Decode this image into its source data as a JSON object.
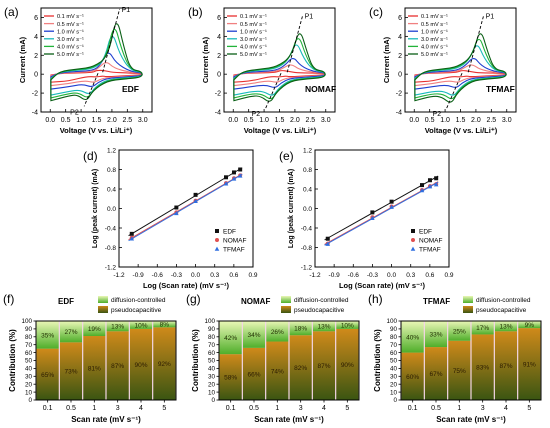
{
  "colors": {
    "scan_rates": [
      "#e7302f",
      "#f08080",
      "#1f3fd0",
      "#19b9bb",
      "#22b33a",
      "#0a5f16"
    ],
    "regression": {
      "EDF": "#111111",
      "NOMAF": "#e05050",
      "TFMAF": "#2f6fe0"
    },
    "bar_pseudo_top": "#cf8a1a",
    "bar_pseudo_bottom": "#3a5512",
    "bar_diff_top": "#eaf7b6",
    "bar_diff_bottom": "#4fae2a",
    "band": "#f4d6e6"
  },
  "chart_data": [
    {
      "panel": "(a)",
      "type": "line",
      "label": "EDF",
      "xlabel": "Voltage (V vs. Li/Li⁺)",
      "ylabel": "Current (mA)",
      "xlim": [
        -0.3,
        3.3
      ],
      "ylim": [
        -4,
        7
      ],
      "xticks": [
        "0.0",
        "0.5",
        "1.0",
        "1.5",
        "2.0",
        "2.5",
        "3.0"
      ],
      "yticks": [
        "-4",
        "-2",
        "0",
        "2",
        "4",
        "6"
      ],
      "legend": [
        "0.1 mV s⁻¹",
        "0.5 mV s⁻¹",
        "1.0 mV s⁻¹",
        "3.0 mV s⁻¹",
        "4.0 mV s⁻¹",
        "5.0 mV s⁻¹"
      ],
      "peak_labels": [
        "P1",
        "P2"
      ],
      "peak_anodic": {
        "v": [
          1.75,
          1.82,
          1.88,
          2.0,
          2.07,
          2.14
        ],
        "i": [
          0.4,
          1.4,
          2.6,
          4.7,
          5.6,
          6.3
        ]
      },
      "peak_cathodic": {
        "v": [
          1.5,
          1.42,
          1.36,
          1.27,
          1.22,
          1.18
        ],
        "i": [
          -0.3,
          -0.9,
          -1.4,
          -2.2,
          -2.6,
          -2.9
        ]
      },
      "trend_line": {
        "anodic": [
          [
            1.7,
            0.2
          ],
          [
            2.25,
            6.9
          ]
        ],
        "cathodic": [
          [
            1.55,
            0.1
          ],
          [
            1.1,
            -3.4
          ]
        ]
      }
    },
    {
      "panel": "(b)",
      "type": "line",
      "label": "NOMAF",
      "xlabel": "Voltage (V vs. Li/Li⁺)",
      "ylabel": "Current (mA)",
      "xlim": [
        -0.3,
        3.3
      ],
      "ylim": [
        -4,
        7
      ],
      "xticks": [
        "0.0",
        "0.5",
        "1.0",
        "1.5",
        "2.0",
        "2.5",
        "3.0"
      ],
      "yticks": [
        "-4",
        "-2",
        "0",
        "2",
        "4",
        "6"
      ],
      "legend": [
        "0.1 mV s⁻¹",
        "0.5 mV s⁻¹",
        "1.0 mV s⁻¹",
        "3.0 mV s⁻¹",
        "4.0 mV s⁻¹",
        "5.0 mV s⁻¹"
      ],
      "peak_labels": [
        "P1",
        "P2"
      ],
      "peak_anodic": {
        "v": [
          1.8,
          1.88,
          1.94,
          2.04,
          2.1,
          2.15
        ],
        "i": [
          0.3,
          1.1,
          1.9,
          3.6,
          4.4,
          5.0
        ]
      },
      "peak_cathodic": {
        "v": [
          1.5,
          1.42,
          1.36,
          1.28,
          1.24,
          1.2
        ],
        "i": [
          -0.3,
          -0.9,
          -1.5,
          -2.4,
          -2.8,
          -3.1
        ]
      },
      "trend_line": {
        "anodic": [
          [
            1.75,
            0.2
          ],
          [
            2.25,
            6.2
          ]
        ],
        "cathodic": [
          [
            1.55,
            0.1
          ],
          [
            1.05,
            -3.6
          ]
        ]
      }
    },
    {
      "panel": "(c)",
      "type": "line",
      "label": "TFMAF",
      "xlabel": "Voltage (V vs. Li/Li⁺)",
      "ylabel": "Current (mA)",
      "xlim": [
        -0.3,
        3.3
      ],
      "ylim": [
        -4,
        7
      ],
      "xticks": [
        "0.0",
        "0.5",
        "1.0",
        "1.5",
        "2.0",
        "2.5",
        "3.0"
      ],
      "yticks": [
        "-4",
        "-2",
        "0",
        "2",
        "4",
        "6"
      ],
      "legend": [
        "0.1 mV s⁻¹",
        "0.5 mV s⁻¹",
        "1.0 mV s⁻¹",
        "3.0 mV s⁻¹",
        "4.0 mV s⁻¹",
        "5.0 mV s⁻¹"
      ],
      "peak_labels": [
        "P1",
        "P2"
      ],
      "peak_anodic": {
        "v": [
          1.8,
          1.87,
          1.93,
          2.03,
          2.09,
          2.14
        ],
        "i": [
          0.3,
          1.1,
          1.9,
          3.5,
          4.3,
          5.0
        ]
      },
      "peak_cathodic": {
        "v": [
          1.5,
          1.42,
          1.36,
          1.28,
          1.24,
          1.2
        ],
        "i": [
          -0.3,
          -0.9,
          -1.5,
          -2.4,
          -2.8,
          -3.2
        ]
      },
      "trend_line": {
        "anodic": [
          [
            1.75,
            0.2
          ],
          [
            2.25,
            6.2
          ]
        ],
        "cathodic": [
          [
            1.55,
            0.1
          ],
          [
            1.05,
            -3.6
          ]
        ]
      }
    },
    {
      "panel": "(d)",
      "type": "scatter",
      "xlabel": "Log (Scan rate) (mV s⁻¹)",
      "ylabel": "Log (peak current) (mA)",
      "xlim": [
        -1.2,
        0.9
      ],
      "ylim": [
        -1.2,
        1.2
      ],
      "xticks": [
        "-1.2",
        "-0.9",
        "-0.6",
        "-0.3",
        "0.0",
        "0.3",
        "0.6",
        "0.9"
      ],
      "yticks": [
        "-1.2",
        "-0.8",
        "-0.4",
        "0.0",
        "0.4",
        "0.8",
        "1.2"
      ],
      "x": [
        -1.0,
        -0.301,
        0.0,
        0.477,
        0.602,
        0.699
      ],
      "series": [
        {
          "name": "EDF",
          "marker": "square",
          "values": [
            -0.52,
            0.02,
            0.28,
            0.64,
            0.74,
            0.8
          ]
        },
        {
          "name": "NOMAF",
          "marker": "circle",
          "values": [
            -0.6,
            -0.08,
            0.16,
            0.52,
            0.62,
            0.68
          ]
        },
        {
          "name": "TFMAF",
          "marker": "triangle",
          "values": [
            -0.62,
            -0.1,
            0.15,
            0.51,
            0.61,
            0.67
          ]
        }
      ]
    },
    {
      "panel": "(e)",
      "type": "scatter",
      "xlabel": "Log (Scan rate) (mV s⁻¹)",
      "ylabel": "Log (peak current) (mA)",
      "xlim": [
        -1.2,
        0.9
      ],
      "ylim": [
        -1.2,
        1.2
      ],
      "xticks": [
        "-1.2",
        "-0.9",
        "-0.6",
        "-0.3",
        "0.0",
        "0.3",
        "0.6",
        "0.9"
      ],
      "yticks": [
        "-1.2",
        "-0.8",
        "-0.4",
        "0.0",
        "0.4",
        "0.8",
        "1.2"
      ],
      "x": [
        -1.0,
        -0.301,
        0.0,
        0.477,
        0.602,
        0.699
      ],
      "series": [
        {
          "name": "EDF",
          "marker": "square",
          "values": [
            -0.62,
            -0.08,
            0.14,
            0.48,
            0.58,
            0.62
          ]
        },
        {
          "name": "NOMAF",
          "marker": "circle",
          "values": [
            -0.72,
            -0.18,
            0.04,
            0.38,
            0.46,
            0.5
          ]
        },
        {
          "name": "TFMAF",
          "marker": "triangle",
          "values": [
            -0.73,
            -0.2,
            0.03,
            0.37,
            0.45,
            0.49
          ]
        }
      ]
    },
    {
      "panel": "(f)",
      "type": "bar",
      "label": "EDF",
      "xlabel": "Scan rate (mV s⁻¹)",
      "ylabel": "Contribution (%)",
      "ylim": [
        0,
        100
      ],
      "yticks": [
        "0",
        "10",
        "20",
        "30",
        "40",
        "50",
        "60",
        "70",
        "80",
        "90",
        "100"
      ],
      "categories": [
        "0.1",
        "0.5",
        "1",
        "3",
        "4",
        "5"
      ],
      "legend": [
        "diffusion-controlled",
        "pseudocapacitive"
      ],
      "series": [
        {
          "name": "pseudocapacitive",
          "values": [
            65,
            73,
            81,
            87,
            90,
            92
          ],
          "labels": [
            "65%",
            "73%",
            "81%",
            "87%",
            "90%",
            "92%"
          ]
        },
        {
          "name": "diffusion-controlled",
          "values": [
            35,
            27,
            19,
            13,
            10,
            8
          ],
          "labels": [
            "35%",
            "27%",
            "19%",
            "13%",
            "10%",
            "8%"
          ]
        }
      ]
    },
    {
      "panel": "(g)",
      "type": "bar",
      "label": "NOMAF",
      "xlabel": "Scan rate (mV s⁻¹)",
      "ylabel": "Contribution (%)",
      "ylim": [
        0,
        100
      ],
      "yticks": [
        "0",
        "10",
        "20",
        "30",
        "40",
        "50",
        "60",
        "70",
        "80",
        "90",
        "100"
      ],
      "categories": [
        "0.1",
        "0.5",
        "1",
        "3",
        "4",
        "5"
      ],
      "legend": [
        "diffusion-controlled",
        "pseudocapacitive"
      ],
      "series": [
        {
          "name": "pseudocapacitive",
          "values": [
            58,
            66,
            74,
            82,
            87,
            90
          ],
          "labels": [
            "58%",
            "66%",
            "74%",
            "82%",
            "87%",
            "90%"
          ]
        },
        {
          "name": "diffusion-controlled",
          "values": [
            42,
            34,
            26,
            18,
            13,
            10
          ],
          "labels": [
            "42%",
            "34%",
            "26%",
            "18%",
            "13%",
            "10%"
          ]
        }
      ]
    },
    {
      "panel": "(h)",
      "type": "bar",
      "label": "TFMAF",
      "xlabel": "Scan rate (mV s⁻¹)",
      "ylabel": "Contribution (%)",
      "ylim": [
        0,
        100
      ],
      "yticks": [
        "0",
        "10",
        "20",
        "30",
        "40",
        "50",
        "60",
        "70",
        "80",
        "90",
        "100"
      ],
      "categories": [
        "0.1",
        "0.5",
        "1",
        "3",
        "4",
        "5"
      ],
      "legend": [
        "diffusion-controlled",
        "pseudocapacitive"
      ],
      "series": [
        {
          "name": "pseudocapacitive",
          "values": [
            60,
            67,
            75,
            83,
            87,
            91
          ],
          "labels": [
            "60%",
            "67%",
            "75%",
            "83%",
            "87%",
            "91%"
          ]
        },
        {
          "name": "diffusion-controlled",
          "values": [
            40,
            33,
            25,
            17,
            13,
            9
          ],
          "labels": [
            "40%",
            "33%",
            "25%",
            "17%",
            "13%",
            "9%"
          ]
        }
      ]
    }
  ]
}
